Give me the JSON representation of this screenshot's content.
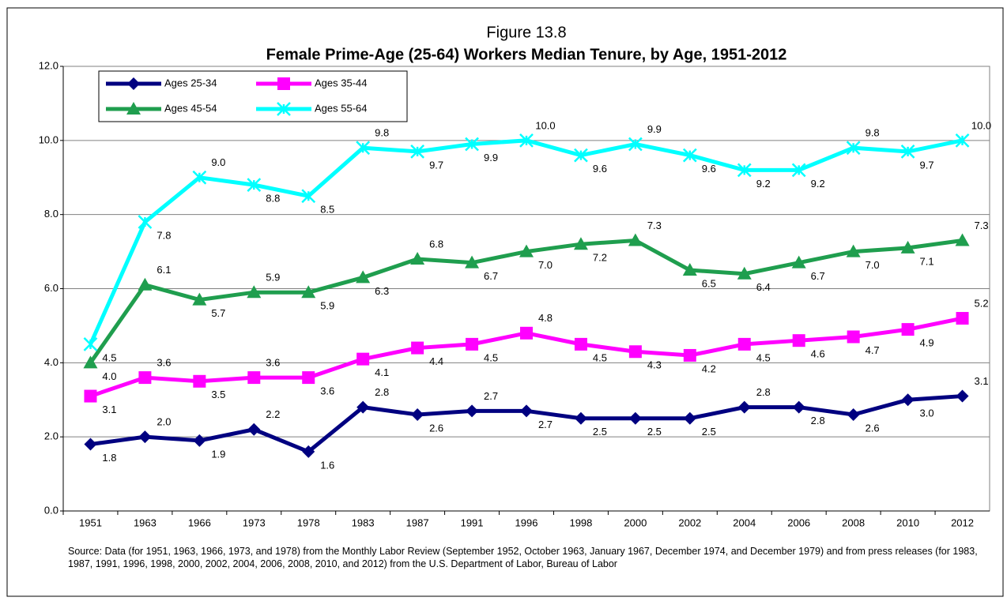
{
  "chart_data": {
    "type": "line",
    "title": "Figure 13.8",
    "subtitle": "Female Prime-Age (25-64) Workers Median Tenure, by Age, 1951-2012",
    "categories": [
      "1951",
      "1963",
      "1966",
      "1973",
      "1978",
      "1983",
      "1987",
      "1991",
      "1996",
      "1998",
      "2000",
      "2002",
      "2004",
      "2006",
      "2008",
      "2010",
      "2012"
    ],
    "series": [
      {
        "name": "Ages 25-34",
        "color": "#000080",
        "marker": "diamond",
        "values": [
          1.8,
          2.0,
          1.9,
          2.2,
          1.6,
          2.8,
          2.6,
          2.7,
          2.7,
          2.5,
          2.5,
          2.5,
          2.8,
          2.8,
          2.6,
          3.0,
          3.1
        ],
        "value_labels": [
          "1.8",
          "2.0",
          "1.9",
          "2.2",
          "1.6",
          "2.8",
          "2.6",
          "2.7",
          "2.7",
          "2.5",
          "2.5",
          "2.5",
          "2.8",
          "2.8",
          "2.6",
          "3.0",
          "3.1"
        ]
      },
      {
        "name": "Ages 35-44",
        "color": "#ff00ff",
        "marker": "square",
        "values": [
          3.1,
          3.6,
          3.5,
          3.6,
          3.6,
          4.1,
          4.4,
          4.5,
          4.8,
          4.5,
          4.3,
          4.2,
          4.5,
          4.6,
          4.7,
          4.9,
          5.2
        ],
        "value_labels": [
          "3.1",
          "3.6",
          "3.5",
          "3.6",
          "3.6",
          "4.1",
          "4.4",
          "4.5",
          "4.8",
          "4.5",
          "4.3",
          "4.2",
          "4.5",
          "4.6",
          "4.7",
          "4.9",
          "5.2"
        ]
      },
      {
        "name": "Ages 45-54",
        "color": "#1f9e4e",
        "marker": "triangle",
        "values": [
          4.0,
          6.1,
          5.7,
          5.9,
          5.9,
          6.3,
          6.8,
          6.7,
          7.0,
          7.2,
          7.3,
          6.5,
          6.4,
          6.7,
          7.0,
          7.1,
          7.3
        ],
        "value_labels": [
          "4.0",
          "6.1",
          "5.7",
          "5.9",
          "5.9",
          "6.3",
          "6.8",
          "6.7",
          "7.0",
          "7.2",
          "7.3",
          "6.5",
          "6.4",
          "6.7",
          "7.0",
          "7.1",
          "7.3"
        ]
      },
      {
        "name": "Ages 55-64",
        "color": "#00ffff",
        "marker": "x",
        "values": [
          4.5,
          7.8,
          9.0,
          8.8,
          8.5,
          9.8,
          9.7,
          9.9,
          10.0,
          9.6,
          9.9,
          9.6,
          9.2,
          9.2,
          9.8,
          9.7,
          10.0
        ],
        "value_labels": [
          "4.5",
          "7.8",
          "9.0",
          "8.8",
          "8.5",
          "9.8",
          "9.7",
          "9.9",
          "10.0",
          "9.6",
          "9.9",
          "9.6",
          "9.2",
          "9.2",
          "9.8",
          "9.7",
          "10.0"
        ]
      }
    ],
    "ylim": [
      0,
      12
    ],
    "yticks": [
      {
        "value": 0,
        "label": "0.0"
      },
      {
        "value": 2,
        "label": "2.0"
      },
      {
        "value": 4,
        "label": "4.0"
      },
      {
        "value": 6,
        "label": "6.0"
      },
      {
        "value": 8,
        "label": "8.0"
      },
      {
        "value": 10,
        "label": "10.0"
      },
      {
        "value": 12,
        "label": "12.0"
      }
    ],
    "grid": true,
    "legend": "top-left",
    "source": "Source:  Data (for 1951, 1963, 1966, 1973, and 1978) from the Monthly Labor Review (September 1952, October 1963, January 1967, December 1974, and December 1979) and from press releases (for 1983, 1987, 1991, 1996, 1998, 2000, 2002, 2004, 2006, 2008, 2010, and 2012) from the U.S. Department of Labor, Bureau of Labor"
  }
}
